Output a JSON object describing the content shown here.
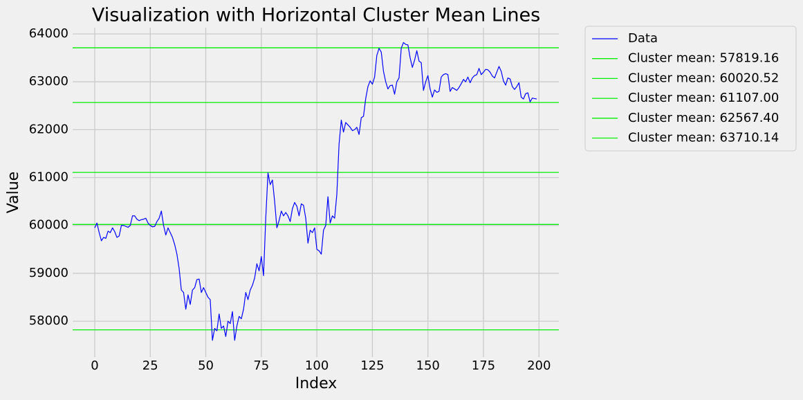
{
  "chart_data": {
    "type": "line",
    "title": "Visualization with Horizontal Cluster Mean Lines",
    "xlabel": "Index",
    "ylabel": "Value",
    "xlim": [
      -9.95,
      208.95
    ],
    "xticks": [
      0,
      25,
      50,
      75,
      100,
      125,
      150,
      175,
      200
    ],
    "ylim": [
      57250,
      64130
    ],
    "yticks": [
      58000,
      59000,
      60000,
      61000,
      62000,
      63000,
      64000
    ],
    "grid": true,
    "legend": "outside upper right",
    "series": [
      {
        "name": "Data",
        "color": "#0000ff",
        "values": [
          59950,
          60050,
          59850,
          59680,
          59750,
          59730,
          59880,
          59850,
          59950,
          59870,
          59750,
          59780,
          60000,
          60000,
          59980,
          59960,
          60000,
          60200,
          60200,
          60130,
          60100,
          60120,
          60130,
          60150,
          60050,
          60000,
          59970,
          59980,
          60080,
          60150,
          60300,
          60000,
          59800,
          59950,
          59850,
          59750,
          59600,
          59400,
          59100,
          58650,
          58600,
          58250,
          58550,
          58350,
          58650,
          58700,
          58870,
          58880,
          58600,
          58700,
          58600,
          58500,
          58450,
          57600,
          57850,
          57800,
          58150,
          57850,
          57900,
          57680,
          58000,
          57950,
          58200,
          57600,
          57900,
          58100,
          58050,
          58250,
          58600,
          58450,
          58650,
          58750,
          58900,
          59200,
          59050,
          59350,
          58950,
          60150,
          61100,
          60850,
          60950,
          60500,
          59950,
          60100,
          60300,
          60200,
          60270,
          60200,
          60080,
          60350,
          60480,
          60400,
          60200,
          60450,
          60420,
          60150,
          59630,
          59900,
          59850,
          59950,
          59500,
          59470,
          59400,
          59900,
          60000,
          60600,
          60050,
          60200,
          60150,
          60650,
          61700,
          62200,
          61950,
          62150,
          62100,
          62050,
          61980,
          62000,
          62050,
          61900,
          62250,
          62280,
          62650,
          62900,
          63020,
          62950,
          63100,
          63550,
          63700,
          63620,
          63220,
          63000,
          62850,
          62920,
          62930,
          62740,
          63000,
          63080,
          63700,
          63820,
          63780,
          63770,
          63500,
          63300,
          63450,
          63650,
          63430,
          63400,
          62820,
          63000,
          63130,
          62850,
          62680,
          62830,
          62780,
          62800,
          63100,
          63150,
          63170,
          63150,
          62800,
          62880,
          62850,
          62820,
          62880,
          62960,
          63050,
          63000,
          63100,
          62980,
          63080,
          63130,
          63150,
          63280,
          63150,
          63200,
          63260,
          63250,
          63200,
          63120,
          63080,
          63200,
          63320,
          63220,
          63020,
          62930,
          63080,
          63060,
          62900,
          62840,
          62900,
          62980,
          62680,
          62640,
          62750,
          62770,
          62580,
          62660,
          62650,
          62640
        ]
      }
    ],
    "hlines": [
      {
        "name": "Cluster mean: 57819.16",
        "value": 57819.16,
        "color": "#00ee00"
      },
      {
        "name": "Cluster mean: 60020.52",
        "value": 60020.52,
        "color": "#00ee00"
      },
      {
        "name": "Cluster mean: 61107.00",
        "value": 61107.0,
        "color": "#00ee00"
      },
      {
        "name": "Cluster mean: 62567.40",
        "value": 62567.4,
        "color": "#00ee00"
      },
      {
        "name": "Cluster mean: 63710.14",
        "value": 63710.14,
        "color": "#00ee00"
      }
    ]
  }
}
